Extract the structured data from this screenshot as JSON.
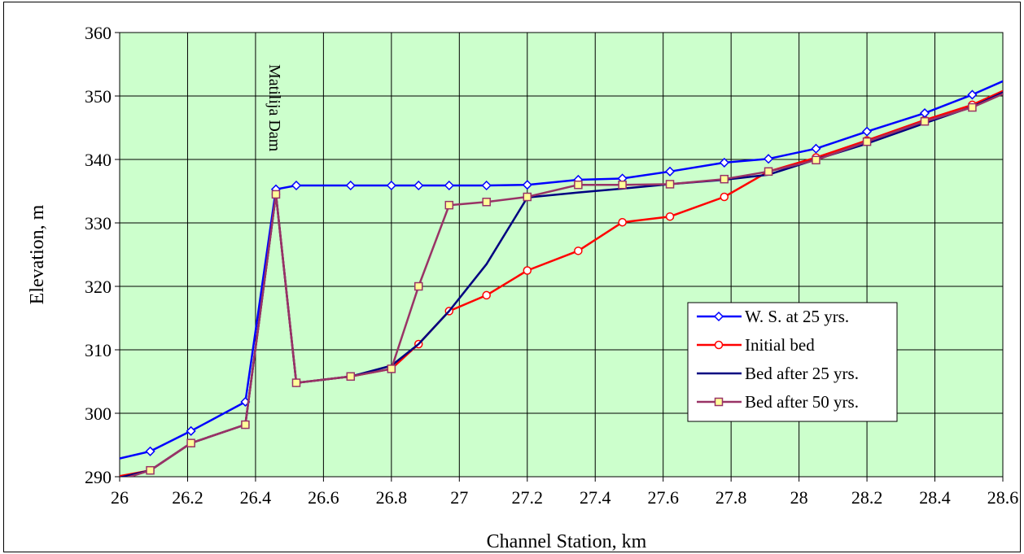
{
  "chart_data": {
    "type": "line",
    "title": "",
    "xlabel": "Channel Station, km",
    "ylabel": "Elevation, m",
    "xlim": [
      26,
      28.6
    ],
    "ylim": [
      290,
      360
    ],
    "xticks": [
      26,
      26.2,
      26.4,
      26.6,
      26.8,
      27,
      27.2,
      27.4,
      27.6,
      27.8,
      28,
      28.2,
      28.4,
      28.6
    ],
    "yticks": [
      290,
      300,
      310,
      320,
      330,
      340,
      350,
      360
    ],
    "grid": true,
    "plot_background": "#ccffcc",
    "legend_position": "right",
    "annotation": {
      "text": "Matilija Dam",
      "x": 26.46,
      "y": 355
    },
    "series": [
      {
        "name": "W. S. at 25 yrs.",
        "color": "#0000ff",
        "marker": "diamond",
        "x": [
          25.97,
          26.09,
          26.21,
          26.37,
          26.46,
          26.52,
          26.68,
          26.8,
          26.88,
          26.97,
          27.08,
          27.2,
          27.35,
          27.48,
          27.62,
          27.78,
          27.91,
          28.05,
          28.2,
          28.37,
          28.51,
          28.65
        ],
        "y": [
          292.5,
          294.0,
          297.2,
          301.8,
          335.3,
          335.9,
          335.9,
          335.9,
          335.9,
          335.9,
          335.9,
          336.0,
          336.8,
          337.0,
          338.1,
          339.5,
          340.1,
          341.7,
          344.4,
          347.3,
          350.2,
          353.5
        ]
      },
      {
        "name": "Initial bed",
        "color": "#ff0000",
        "marker": "circle",
        "x": [
          25.97,
          26.09,
          26.21,
          26.37,
          26.46,
          26.52,
          26.68,
          26.8,
          26.88,
          26.97,
          27.08,
          27.2,
          27.35,
          27.48,
          27.62,
          27.78,
          27.91,
          28.05,
          28.2,
          28.37,
          28.51,
          28.65
        ],
        "y": [
          289.8,
          291.0,
          295.3,
          298.2,
          334.5,
          304.8,
          305.8,
          307.0,
          310.9,
          316.1,
          318.6,
          322.5,
          325.6,
          330.1,
          331.0,
          334.1,
          338.1,
          340.3,
          343.0,
          346.2,
          348.6,
          352.0
        ]
      },
      {
        "name": "Bed after 25 yrs.",
        "color": "#000080",
        "marker": "none",
        "x": [
          25.97,
          26.09,
          26.21,
          26.37,
          26.46,
          26.52,
          26.68,
          26.8,
          26.88,
          26.97,
          27.08,
          27.2,
          27.35,
          27.48,
          27.62,
          27.78,
          27.91,
          28.05,
          28.2,
          28.37,
          28.51,
          28.65
        ],
        "y": [
          289.5,
          291.0,
          295.3,
          298.2,
          334.5,
          304.8,
          305.8,
          307.5,
          310.9,
          316.1,
          323.5,
          334.0,
          334.8,
          335.4,
          336.1,
          336.8,
          337.6,
          340.0,
          342.5,
          345.7,
          348.3,
          351.8
        ]
      },
      {
        "name": "Bed after 50 yrs.",
        "color": "#993366",
        "marker": "square",
        "x": [
          25.97,
          26.09,
          26.21,
          26.37,
          26.46,
          26.52,
          26.68,
          26.8,
          26.88,
          26.97,
          27.08,
          27.2,
          27.35,
          27.48,
          27.62,
          27.78,
          27.91,
          28.05,
          28.2,
          28.37,
          28.51,
          28.65
        ],
        "y": [
          289.0,
          291.0,
          295.3,
          298.2,
          334.5,
          304.8,
          305.8,
          307.0,
          320.0,
          332.8,
          333.3,
          334.1,
          336.0,
          336.0,
          336.1,
          336.9,
          338.1,
          339.9,
          342.8,
          346.0,
          348.2,
          351.5
        ]
      }
    ]
  }
}
